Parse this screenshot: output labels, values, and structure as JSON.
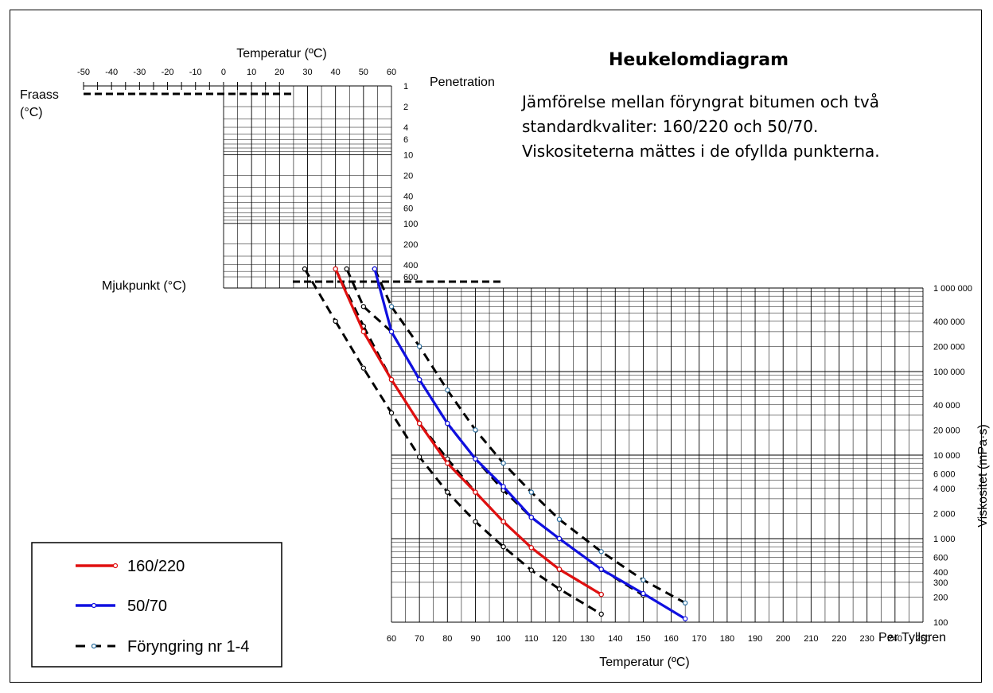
{
  "chart_data": {
    "type": "line",
    "title": "Heukelomdiagram",
    "subtitle_lines": [
      "Jämförelse mellan föryngrat bitumen och två",
      "standardkvaliter: 160/220 och 50/70.",
      "Viskositeterna mättes i de ofyllda punkterna."
    ],
    "author": "Per Tyllgren",
    "fraass_label_lines": [
      "Fraass",
      "(°C)"
    ],
    "softening_label": "Mjukpunkt (°C)",
    "top_axis": {
      "label": "Temperatur (ºC)",
      "ticks": [
        "-50",
        "-40",
        "-30",
        "-20",
        "-10",
        "0",
        "10",
        "20",
        "30",
        "40",
        "50",
        "60"
      ],
      "range": [
        -50,
        60
      ]
    },
    "penetration_axis": {
      "label": "Penetration",
      "ticks": [
        "1",
        "2",
        "4",
        "6",
        "10",
        "20",
        "40",
        "60",
        "100",
        "200",
        "400",
        "600"
      ],
      "log": true
    },
    "x_axis": {
      "label": "Temperatur (ºC)",
      "ticks": [
        "60",
        "70",
        "80",
        "90",
        "100",
        "110",
        "120",
        "130",
        "140",
        "150",
        "160",
        "170",
        "180",
        "190",
        "200",
        "210",
        "220",
        "230",
        "240",
        "250"
      ],
      "range": [
        60,
        250
      ]
    },
    "y_axis": {
      "label": "Viskositet (mPa·s)",
      "ticks": [
        "100",
        "200",
        "300",
        "400",
        "600",
        "1 000",
        "2 000",
        "4 000",
        "6 000",
        "10 000",
        "20 000",
        "40 000",
        "100 000",
        "200 000",
        "400 000",
        "1 000 000"
      ],
      "tick_values": [
        100,
        200,
        300,
        400,
        600,
        1000,
        2000,
        4000,
        6000,
        10000,
        20000,
        40000,
        100000,
        200000,
        400000,
        1000000
      ],
      "log": true,
      "range": [
        100,
        1000000
      ]
    },
    "softening_points_temp": [
      29,
      40,
      44,
      54
    ],
    "series": [
      {
        "name": "160/220",
        "color": "#e01010",
        "style": "solid",
        "points": [
          [
            40,
            1000000
          ],
          [
            50,
            300000
          ],
          [
            60,
            80000
          ],
          [
            70,
            24000
          ],
          [
            80,
            8000
          ],
          [
            90,
            3600
          ],
          [
            100,
            1600
          ],
          [
            110,
            780
          ],
          [
            120,
            430
          ],
          [
            135,
            215
          ]
        ]
      },
      {
        "name": "50/70",
        "color": "#1010e0",
        "style": "solid",
        "points": [
          [
            54,
            1000000
          ],
          [
            60,
            300000
          ],
          [
            70,
            80000
          ],
          [
            80,
            24000
          ],
          [
            90,
            9000
          ],
          [
            100,
            4200
          ],
          [
            110,
            1800
          ],
          [
            120,
            1000
          ],
          [
            135,
            430
          ],
          [
            150,
            220
          ],
          [
            165,
            110
          ]
        ]
      },
      {
        "name": "Föryngring nr 1-4",
        "color": "#000000",
        "style": "dashed",
        "lines": [
          [
            [
              29,
              1000000
            ],
            [
              40,
              400000
            ],
            [
              50,
              110000
            ],
            [
              60,
              32000
            ],
            [
              70,
              9500
            ],
            [
              80,
              3600
            ],
            [
              90,
              1600
            ],
            [
              100,
              800
            ],
            [
              110,
              420
            ],
            [
              120,
              250
            ],
            [
              135,
              125
            ]
          ],
          [
            [
              40,
              1000000
            ],
            [
              50,
              350000
            ],
            [
              60,
              80000
            ],
            [
              70,
              24000
            ],
            [
              80,
              9000
            ],
            [
              90,
              3600
            ],
            [
              100,
              1600
            ],
            [
              110,
              780
            ],
            [
              120,
              430
            ],
            [
              135,
              215
            ]
          ],
          [
            [
              44,
              1000000
            ],
            [
              50,
              600000
            ],
            [
              60,
              300000
            ],
            [
              70,
              80000
            ],
            [
              80,
              24000
            ],
            [
              90,
              9000
            ],
            [
              100,
              3800
            ],
            [
              110,
              1800
            ],
            [
              120,
              1000
            ],
            [
              135,
              430
            ],
            [
              150,
              210
            ]
          ],
          [
            [
              54,
              1000000
            ],
            [
              60,
              600000
            ],
            [
              70,
              200000
            ],
            [
              80,
              60000
            ],
            [
              90,
              20000
            ],
            [
              100,
              8000
            ],
            [
              110,
              3600
            ],
            [
              120,
              1700
            ],
            [
              135,
              700
            ],
            [
              150,
              320
            ],
            [
              165,
              170
            ]
          ]
        ]
      }
    ],
    "legend": {
      "position": "bottom-left"
    }
  }
}
